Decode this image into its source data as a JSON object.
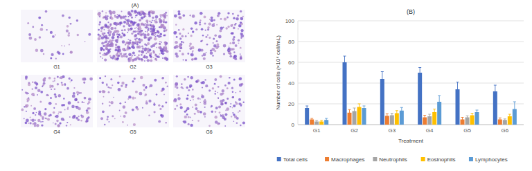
{
  "panel_a": {
    "title": "(A)",
    "labels": [
      "G1",
      "G2",
      "G3",
      "G4",
      "G5",
      "G6"
    ]
  },
  "chart_data": {
    "type": "bar",
    "title": "(B)",
    "x_label": "Treatment",
    "y_label": "Number of cells (×10⁴ cell/mL)",
    "categories": [
      "G1",
      "G2",
      "G3",
      "G4",
      "G5",
      "G6"
    ],
    "series": [
      {
        "name": "Total cells",
        "color": "#4472c4",
        "values": [
          16,
          60,
          44,
          50,
          34,
          32
        ],
        "errors": [
          2,
          6,
          7,
          5,
          7,
          6
        ]
      },
      {
        "name": "Macrophages",
        "color": "#ed7d31",
        "values": [
          5,
          11.5,
          8.5,
          7,
          5,
          5
        ],
        "errors": [
          1,
          3,
          2,
          2,
          2,
          1.5
        ]
      },
      {
        "name": "Neutrophils",
        "color": "#a5a5a5",
        "values": [
          3,
          13,
          9,
          8,
          7,
          4.5
        ],
        "errors": [
          1,
          3,
          2,
          2,
          1.5,
          1
        ]
      },
      {
        "name": "Eosinophils",
        "color": "#ffc000",
        "values": [
          3,
          17,
          11,
          12,
          9,
          8
        ],
        "errors": [
          1,
          3,
          2.5,
          3,
          2,
          2
        ]
      },
      {
        "name": "Lymphocytes",
        "color": "#5b9bd5",
        "values": [
          4.5,
          16,
          13.5,
          22,
          12,
          15
        ],
        "errors": [
          1.5,
          2,
          3,
          6,
          2,
          7
        ]
      }
    ],
    "ylim": [
      0,
      100
    ],
    "yticks": [
      0,
      20,
      40,
      60,
      80,
      100
    ],
    "grid": true,
    "legend": "bottom"
  }
}
